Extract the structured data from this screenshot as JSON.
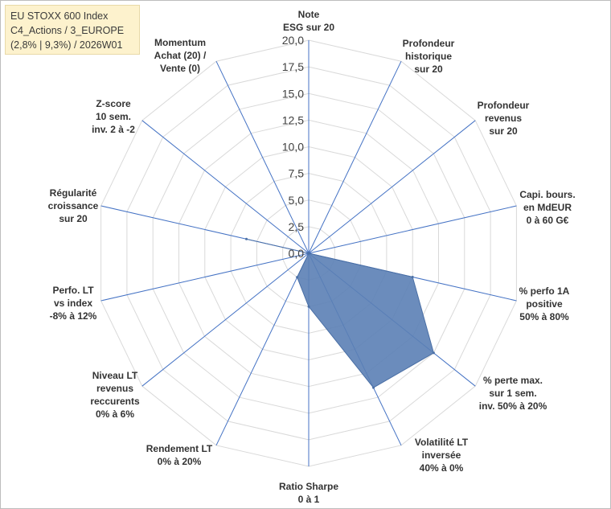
{
  "chart_data": {
    "type": "radar",
    "title_lines": [
      "EU STOXX 600 Index",
      "C4_Actions / 3_EUROPE",
      "(2,8% | 9,3%) / 2026W01"
    ],
    "r_min": 0,
    "r_max": 20,
    "r_step": 2.5,
    "tick_labels": [
      "0,0",
      "2,5",
      "5,0",
      "7,5",
      "10,0",
      "12,5",
      "15,0",
      "17,5",
      "20,0"
    ],
    "grid": true,
    "fill_color": "#5b7fb5",
    "axis_color": "#4472c4",
    "grid_color": "#d9d9d9",
    "axes": [
      {
        "label": [
          "Note",
          "ESG sur 20"
        ],
        "value": 0
      },
      {
        "label": [
          "Profondeur",
          "historique",
          "sur 20"
        ],
        "value": 0
      },
      {
        "label": [
          "Profondeur",
          "revenus",
          "sur 20"
        ],
        "value": 0
      },
      {
        "label": [
          "Capi. bours.",
          "en MdEUR",
          "0 à 60 G€"
        ],
        "value": 0
      },
      {
        "label": [
          "% perfo 1A",
          "positive",
          "50% à 80%"
        ],
        "value": 10
      },
      {
        "label": [
          "% perte max.",
          "sur 1 sem.",
          "inv. 50% à 20%"
        ],
        "value": 15
      },
      {
        "label": [
          "Volatilité LT",
          "inversée",
          "40% à 0%"
        ],
        "value": 14
      },
      {
        "label": [
          "Ratio Sharpe",
          "0 à 1"
        ],
        "value": 5
      },
      {
        "label": [
          "Rendement LT",
          "0% à 20%"
        ],
        "value": 2.5
      },
      {
        "label": [
          "Niveau LT",
          "revenus",
          "reccurents",
          "0% à 6%"
        ],
        "value": 0
      },
      {
        "label": [
          "Perfo. LT",
          "vs index",
          "-8% à 12%"
        ],
        "value": 0
      },
      {
        "label": [
          "Régularité",
          "croissance",
          "sur 20"
        ],
        "value": 6
      },
      {
        "label": [
          "Z-score",
          "10 sem.",
          "inv. 2 à -2"
        ],
        "value": 0
      },
      {
        "label": [
          "Momentum",
          "Achat (20) /",
          "Vente (0)"
        ],
        "value": 0
      }
    ]
  }
}
